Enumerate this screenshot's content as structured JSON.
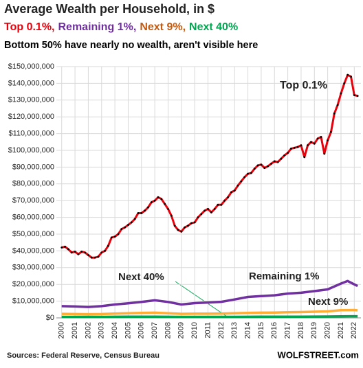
{
  "chart_data": {
    "type": "line",
    "title": "Average Wealth per Household, in $",
    "subtitle_parts": [
      {
        "text": "Top 0.1%,",
        "color": "#e8000b"
      },
      {
        "text": "Remaining 1%,",
        "color": "#7030a0"
      },
      {
        "text": "Next 9%,",
        "color": "#c55a11"
      },
      {
        "text": "Next 40%",
        "color": "#00a650"
      }
    ],
    "note": "Bottom 50% have nearly no wealth, aren't visible here",
    "source": "Sources: Federal Reserve, Census Bureau",
    "credit": "WOLFSTREET.com",
    "xlim": [
      1999.6,
      2022.5
    ],
    "xticks": [
      2000,
      2001,
      2002,
      2003,
      2004,
      2005,
      2006,
      2007,
      2008,
      2009,
      2010,
      2011,
      2012,
      2013,
      2014,
      2015,
      2016,
      2017,
      2018,
      2019,
      2020,
      2021,
      2022
    ],
    "ylim": [
      0,
      150000000
    ],
    "yticks": [
      {
        "value": 0,
        "label": "$0"
      },
      {
        "value": 10000000,
        "label": "$10,000,000"
      },
      {
        "value": 20000000,
        "label": "$20,000,000"
      },
      {
        "value": 30000000,
        "label": "$30,000,000"
      },
      {
        "value": 40000000,
        "label": "$40,000,000"
      },
      {
        "value": 50000000,
        "label": "$50,000,000"
      },
      {
        "value": 60000000,
        "label": "$60,000,000"
      },
      {
        "value": 70000000,
        "label": "$70,000,000"
      },
      {
        "value": 80000000,
        "label": "$80,000,000"
      },
      {
        "value": 90000000,
        "label": "$90,000,000"
      },
      {
        "value": 100000000,
        "label": "$100,000,000"
      },
      {
        "value": 110000000,
        "label": "$110,000,000"
      },
      {
        "value": 120000000,
        "label": "$120,000,000"
      },
      {
        "value": 130000000,
        "label": "$130,000,000"
      },
      {
        "value": 140000000,
        "label": "$140,000,000"
      },
      {
        "value": 150000000,
        "label": "$150,000,000"
      }
    ],
    "grid": true,
    "series": [
      {
        "name": "Top 0.1%",
        "color": "#e8000b",
        "markers": true,
        "x": [
          2000,
          2000.25,
          2000.5,
          2000.75,
          2001,
          2001.25,
          2001.5,
          2001.75,
          2002,
          2002.25,
          2002.5,
          2002.75,
          2003,
          2003.25,
          2003.5,
          2003.75,
          2004,
          2004.25,
          2004.5,
          2004.75,
          2005,
          2005.25,
          2005.5,
          2005.75,
          2006,
          2006.25,
          2006.5,
          2006.75,
          2007,
          2007.25,
          2007.5,
          2007.75,
          2008,
          2008.25,
          2008.5,
          2008.75,
          2009,
          2009.25,
          2009.5,
          2009.75,
          2010,
          2010.25,
          2010.5,
          2010.75,
          2011,
          2011.25,
          2011.5,
          2011.75,
          2012,
          2012.25,
          2012.5,
          2012.75,
          2013,
          2013.25,
          2013.5,
          2013.75,
          2014,
          2014.25,
          2014.5,
          2014.75,
          2015,
          2015.25,
          2015.5,
          2015.75,
          2016,
          2016.25,
          2016.5,
          2016.75,
          2017,
          2017.25,
          2017.5,
          2017.75,
          2018,
          2018.25,
          2018.5,
          2018.75,
          2019,
          2019.25,
          2019.5,
          2019.75,
          2020,
          2020.25,
          2020.5,
          2020.75,
          2021,
          2021.25,
          2021.5,
          2021.75,
          2022,
          2022.25
        ],
        "values": [
          42000000.0,
          42500000.0,
          41000000.0,
          39000000.0,
          39500000.0,
          38000000.0,
          39500000.0,
          39000000.0,
          37500000.0,
          36000000.0,
          36000000.0,
          36500000.0,
          39000000.0,
          40000000.0,
          43000000.0,
          48000000.0,
          48500000.0,
          50000000.0,
          53000000.0,
          54000000.0,
          55500000.0,
          57000000.0,
          59000000.0,
          62500000.0,
          62500000.0,
          64000000.0,
          66000000.0,
          69000000.0,
          70000000.0,
          72000000.0,
          71000000.0,
          68000000.0,
          65000000.0,
          61000000.0,
          55000000.0,
          52500000.0,
          51500000.0,
          54000000.0,
          55000000.0,
          56500000.0,
          57000000.0,
          60000000.0,
          62000000.0,
          64000000.0,
          65000000.0,
          63000000.0,
          65000000.0,
          67500000.0,
          67500000.0,
          70000000.0,
          72000000.0,
          75000000.0,
          76000000.0,
          79000000.0,
          81500000.0,
          84000000.0,
          86000000.0,
          86500000.0,
          89000000.0,
          91000000.0,
          91500000.0,
          89500000.0,
          90500000.0,
          92000000.0,
          93500000.0,
          93000000.0,
          95000000.0,
          97000000.0,
          98500000.0,
          101000000.0,
          101500000.0,
          102000000.0,
          103000000.0,
          96000000.0,
          103000000.0,
          105000000.0,
          104000000.0,
          107000000.0,
          108000000.0,
          98000000.0,
          106000000.0,
          111000000.0,
          122000000.0,
          127000000.0,
          134000000.0,
          140000000.0,
          145000000.0,
          144000000.0,
          133000000.0,
          132500000.0
        ]
      },
      {
        "name": "Remaining 1%",
        "color": "#7030a0",
        "x": [
          2000,
          2001,
          2002,
          2003,
          2004,
          2005,
          2006,
          2007,
          2008,
          2009,
          2010,
          2011,
          2012,
          2013,
          2014,
          2015,
          2016,
          2017,
          2018,
          2019,
          2020,
          2021,
          2021.5,
          2022,
          2022.25
        ],
        "values": [
          7000000.0,
          6800000.0,
          6500000.0,
          7000000.0,
          8000000.0,
          8700000.0,
          9500000.0,
          10500000.0,
          9500000.0,
          8000000.0,
          8800000.0,
          9200000.0,
          9600000.0,
          11000000.0,
          12500000.0,
          13000000.0,
          13500000.0,
          14500000.0,
          15000000.0,
          16000000.0,
          17000000.0,
          20500000.0,
          22000000.0,
          20000000.0,
          19000000.0
        ]
      },
      {
        "name": "Next 9%",
        "color": "#ffad33",
        "x": [
          2000,
          2001,
          2002,
          2003,
          2004,
          2005,
          2006,
          2007,
          2008,
          2009,
          2010,
          2011,
          2012,
          2013,
          2014,
          2015,
          2016,
          2017,
          2018,
          2019,
          2020,
          2021,
          2022,
          2022.25
        ],
        "values": [
          2400000.0,
          2300000.0,
          2200000.0,
          2300000.0,
          2600000.0,
          2800000.0,
          3000000.0,
          3100000.0,
          2800000.0,
          2400000.0,
          2500000.0,
          2500000.0,
          2600000.0,
          2800000.0,
          3000000.0,
          3100000.0,
          3200000.0,
          3400000.0,
          3500000.0,
          3700000.0,
          3900000.0,
          4600000.0,
          4700000.0,
          4500000.0
        ]
      },
      {
        "name": "Next 40%",
        "color": "#00a650",
        "x": [
          2000,
          2001,
          2002,
          2003,
          2004,
          2005,
          2006,
          2007,
          2008,
          2009,
          2010,
          2011,
          2012,
          2013,
          2014,
          2015,
          2016,
          2017,
          2018,
          2019,
          2020,
          2021,
          2022,
          2022.25
        ],
        "values": [
          600000.0,
          600000.0,
          600000.0,
          600000.0,
          650000.0,
          700000.0,
          700000.0,
          700000.0,
          650000.0,
          600000.0,
          600000.0,
          600000.0,
          600000.0,
          620000.0,
          650000.0,
          680000.0,
          700000.0,
          720000.0,
          750000.0,
          780000.0,
          800000.0,
          950000.0,
          1000000.0,
          1000000.0
        ]
      }
    ]
  }
}
